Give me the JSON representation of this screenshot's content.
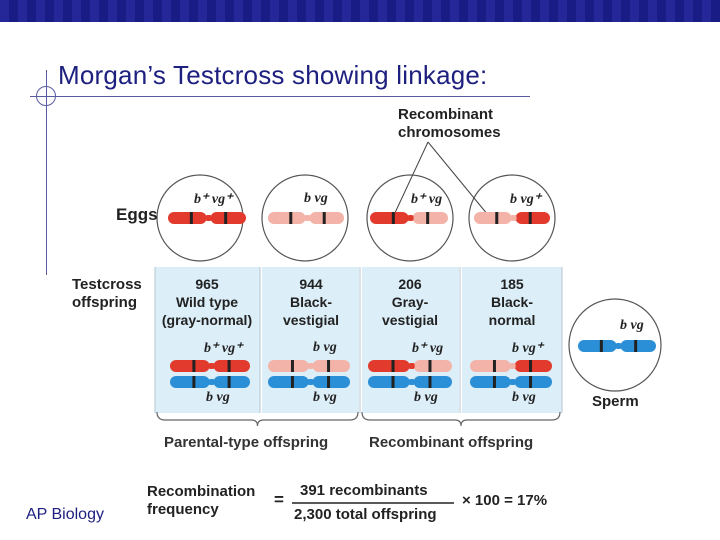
{
  "slide": {
    "title": "Morgan’s Testcross showing linkage:",
    "footer": "AP Biology"
  },
  "diagram": {
    "recombinant_label_1": "Recombinant",
    "recombinant_label_2": "chromosomes",
    "eggs_label": "Eggs",
    "testcross_label_1": "Testcross",
    "testcross_label_2": "offspring",
    "sperm_label": "Sperm",
    "offspring": [
      {
        "count": "965",
        "line2": "Wild type",
        "line3": "(gray-normal)",
        "egg_genes": "b⁺ vg⁺",
        "top_genes": "b⁺ vg⁺",
        "bottom_genes": "b  vg"
      },
      {
        "count": "944",
        "line2": "Black-",
        "line3": "vestigial",
        "egg_genes": "b  vg",
        "top_genes": "b  vg",
        "bottom_genes": "b  vg"
      },
      {
        "count": "206",
        "line2": "Gray-",
        "line3": "vestigial",
        "egg_genes": "b⁺ vg",
        "top_genes": "b⁺ vg",
        "bottom_genes": "b  vg"
      },
      {
        "count": "185",
        "line2": "Black-",
        "line3": "normal",
        "egg_genes": "b vg⁺",
        "top_genes": "b  vg⁺",
        "bottom_genes": "b  vg"
      }
    ],
    "sperm_genes": "b  vg",
    "parental_label": "Parental-type offspring",
    "recombinant_offspring_label": "Recombinant offspring",
    "formula": {
      "lhs_1": "Recombination",
      "lhs_2": "frequency",
      "equals": "=",
      "numerator": "391 recombinants",
      "denominator": "2,300 total offspring",
      "result": "× 100 = 17%"
    }
  },
  "colors": {
    "wild": "#e23a2c",
    "wild_dark": "#b02218",
    "mutant": "#f4b3a8",
    "mutant_dark": "#d88a80",
    "sperm": "#2a8fd6",
    "sperm_dark": "#1d6aa8",
    "panel": "#dceef8",
    "title": "#1e2080"
  }
}
